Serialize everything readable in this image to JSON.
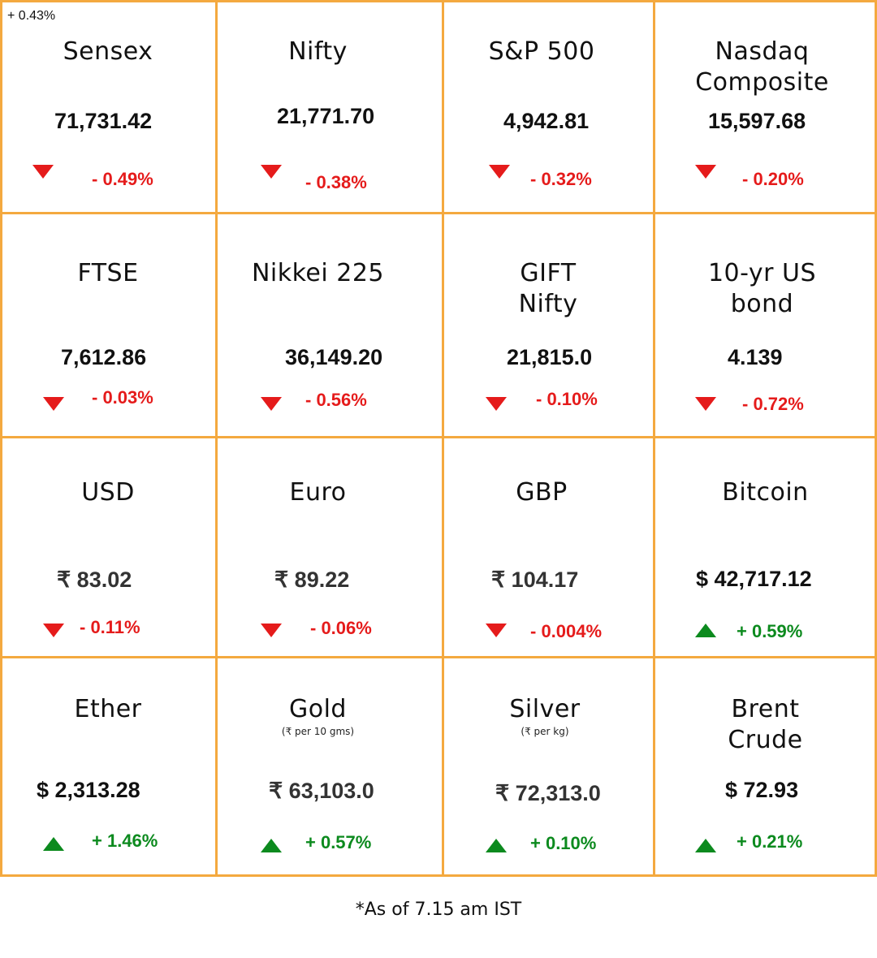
{
  "stray_text": "+ 0.43%",
  "colors": {
    "border": "#f4a93f",
    "negative": "#e51b1b",
    "positive": "#0c8a1e"
  },
  "tiles": [
    {
      "title": "Sensex",
      "value": "71,731.42",
      "change": "- 0.49%",
      "direction": "down"
    },
    {
      "title": "Nifty",
      "value": "21,771.70",
      "change": "- 0.38%",
      "direction": "down"
    },
    {
      "title": "S&P 500",
      "value": "4,942.81",
      "change": "- 0.32%",
      "direction": "down"
    },
    {
      "title": "Nasdaq Composite",
      "title_line1": "Nasdaq",
      "title_line2": "Composite",
      "value": "15,597.68",
      "change": "- 0.20%",
      "direction": "down"
    },
    {
      "title": "FTSE",
      "value": "7,612.86",
      "change": "- 0.03%",
      "direction": "down"
    },
    {
      "title": "Nikkei 225",
      "value": "36,149.20",
      "change": "- 0.56%",
      "direction": "down"
    },
    {
      "title": "GIFT Nifty",
      "title_line1": "GIFT",
      "title_line2": "Nifty",
      "value": "21,815.0",
      "change": "- 0.10%",
      "direction": "down"
    },
    {
      "title": "10-yr US bond",
      "title_line1": "10-yr US",
      "title_line2": "bond",
      "value": "4.139",
      "change": "- 0.72%",
      "direction": "down"
    },
    {
      "title": "USD",
      "value": "₹ 83.02",
      "change": "- 0.11%",
      "direction": "down"
    },
    {
      "title": "Euro",
      "value": "₹ 89.22",
      "change": "- 0.06%",
      "direction": "down"
    },
    {
      "title": "GBP",
      "value": "₹ 104.17",
      "change": "- 0.004%",
      "direction": "down"
    },
    {
      "title": "Bitcoin",
      "value": "$ 42,717.12",
      "change": "+ 0.59%",
      "direction": "up"
    },
    {
      "title": "Ether",
      "value": "$ 2,313.28",
      "change": "+ 1.46%",
      "direction": "up"
    },
    {
      "title": "Gold",
      "subtitle": "(₹ per 10 gms)",
      "value": "₹ 63,103.0",
      "change": "+ 0.57%",
      "direction": "up"
    },
    {
      "title": "Silver",
      "subtitle": "(₹ per kg)",
      "value": "₹ 72,313.0",
      "change": "+ 0.10%",
      "direction": "up"
    },
    {
      "title": "Brent Crude",
      "title_line1": "Brent",
      "title_line2": "Crude",
      "value": "$ 72.93",
      "change": "+ 0.21%",
      "direction": "up"
    }
  ],
  "footnote": "*As of 7.15 am IST"
}
